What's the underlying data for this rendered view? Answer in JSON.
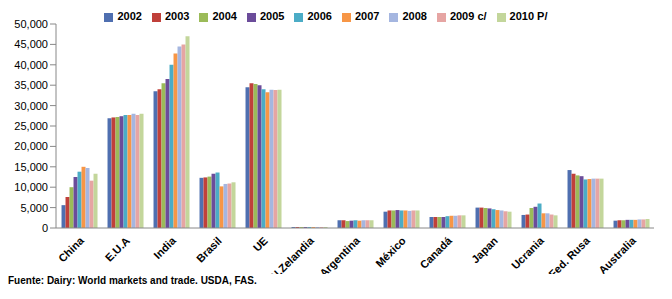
{
  "chart_data": {
    "type": "bar",
    "annotation": "Fuente: Dairy: World markets and trade. USDA, FAS.",
    "categories": [
      "China",
      "E.U.A",
      "India",
      "Brasil",
      "UE",
      "N.Zelandia",
      "Argentina",
      "México",
      "Canadá",
      "Japan",
      "Ucrania",
      "Fed. Rusa",
      "Australia"
    ],
    "series": [
      {
        "name": "2002",
        "color": "#4f6fb0",
        "values": [
          5600,
          26900,
          33500,
          12300,
          34500,
          250,
          1900,
          4000,
          2700,
          5000,
          3200,
          14200,
          1800
        ]
      },
      {
        "name": "2003",
        "color": "#c0403a",
        "values": [
          7600,
          27100,
          34000,
          12400,
          35500,
          250,
          1900,
          4300,
          2700,
          5000,
          3300,
          13300,
          1900
        ]
      },
      {
        "name": "2004",
        "color": "#9bbb59",
        "values": [
          10000,
          27200,
          35500,
          12600,
          35300,
          250,
          1700,
          4300,
          2700,
          4900,
          4900,
          12900,
          1900
        ]
      },
      {
        "name": "2005",
        "color": "#6b4c9a",
        "values": [
          12500,
          27400,
          36500,
          13300,
          35000,
          250,
          1800,
          4400,
          2700,
          4800,
          5200,
          12700,
          2000
        ]
      },
      {
        "name": "2006",
        "color": "#4bacc6",
        "values": [
          13800,
          27700,
          40000,
          13600,
          34000,
          250,
          1900,
          4300,
          2900,
          4600,
          6000,
          11900,
          2000
        ]
      },
      {
        "name": "2007",
        "color": "#f79646",
        "values": [
          15000,
          27700,
          42800,
          10200,
          33300,
          250,
          1800,
          4300,
          3000,
          4400,
          3600,
          12000,
          2000
        ]
      },
      {
        "name": "2008",
        "color": "#a5b6e0",
        "values": [
          14700,
          28000,
          44500,
          10800,
          33900,
          250,
          1900,
          4200,
          3000,
          4300,
          3600,
          12100,
          2100
        ]
      },
      {
        "name": "2009 c/",
        "color": "#e6a5a3",
        "values": [
          11600,
          27700,
          45000,
          10900,
          33800,
          250,
          1900,
          4300,
          3100,
          4100,
          3300,
          12100,
          2100
        ]
      },
      {
        "name": "2010 P/",
        "color": "#c3d69b",
        "values": [
          13300,
          28000,
          47000,
          11200,
          33900,
          250,
          1900,
          4300,
          3100,
          4000,
          3100,
          12100,
          2200
        ]
      }
    ],
    "ylim": [
      0,
      50000
    ],
    "yticks": [
      0,
      {
        "value": 5000,
        "label": "5,000"
      },
      {
        "value": 10000,
        "label": "10,000"
      },
      {
        "value": 15000,
        "label": "15,000"
      },
      {
        "value": 20000,
        "label": "20,000"
      },
      {
        "value": 25000,
        "label": "25,000"
      },
      {
        "value": 30000,
        "label": "30,000"
      },
      {
        "value": 35000,
        "label": "35,000"
      },
      {
        "value": 40000,
        "label": "40,000"
      },
      {
        "value": 45000,
        "label": "45,000"
      },
      {
        "value": 50000,
        "label": "50,000"
      }
    ],
    "legend": "top"
  }
}
